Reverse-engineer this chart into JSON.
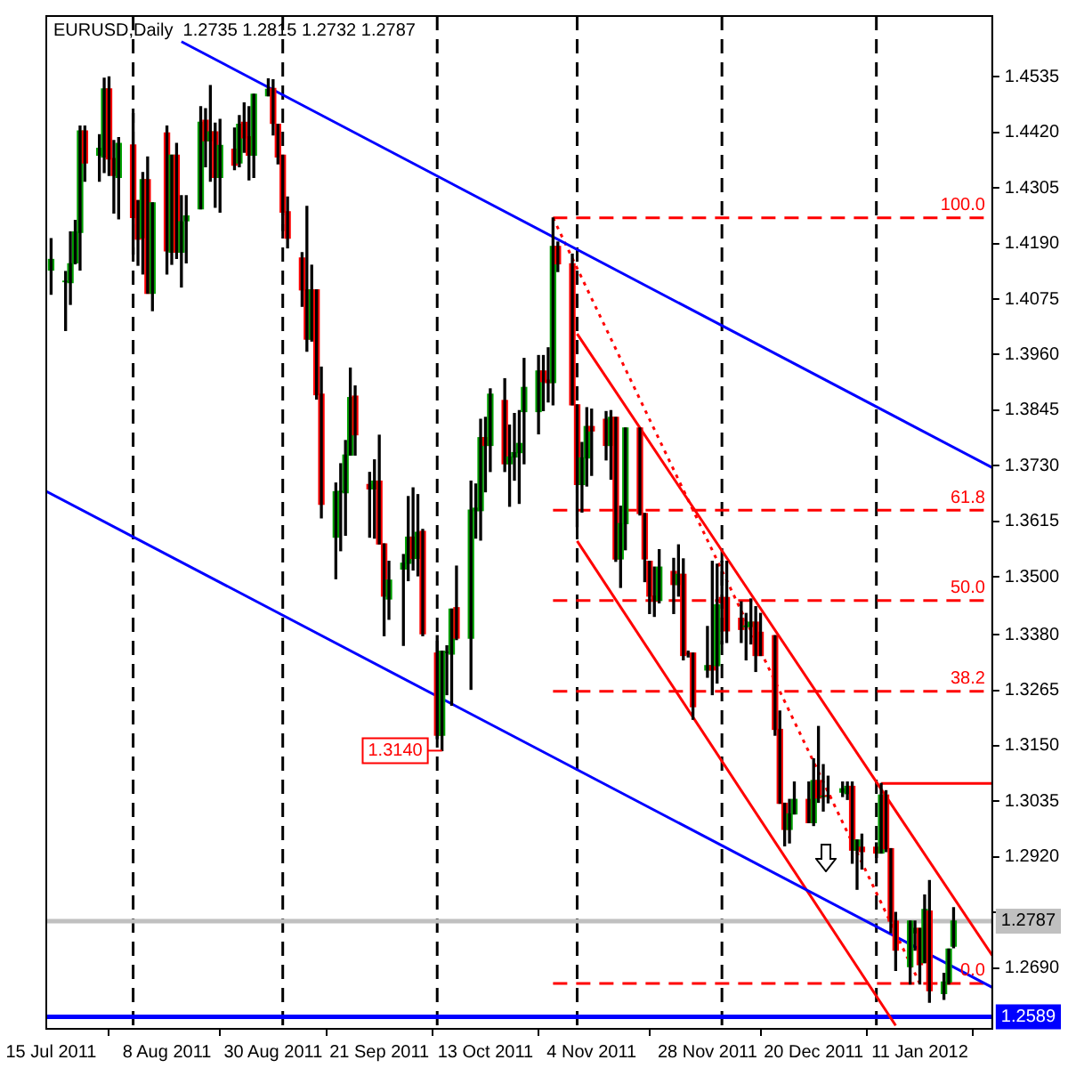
{
  "chart_data": {
    "type": "candlestick",
    "title": "EURUSD,Daily  1.2735 1.2815 1.2732 1.2787",
    "x": [
      "2011-07-15",
      "2011-07-18",
      "2011-07-19",
      "2011-07-20",
      "2011-07-21",
      "2011-07-22",
      "2011-07-25",
      "2011-07-26",
      "2011-07-27",
      "2011-07-28",
      "2011-07-29",
      "2011-08-01",
      "2011-08-02",
      "2011-08-03",
      "2011-08-04",
      "2011-08-05",
      "2011-08-08",
      "2011-08-09",
      "2011-08-10",
      "2011-08-11",
      "2011-08-12",
      "2011-08-15",
      "2011-08-16",
      "2011-08-17",
      "2011-08-18",
      "2011-08-19",
      "2011-08-22",
      "2011-08-23",
      "2011-08-24",
      "2011-08-25",
      "2011-08-26",
      "2011-08-29",
      "2011-08-30",
      "2011-08-31",
      "2011-09-01",
      "2011-09-02",
      "2011-09-05",
      "2011-09-06",
      "2011-09-07",
      "2011-09-08",
      "2011-09-09",
      "2011-09-12",
      "2011-09-13",
      "2011-09-14",
      "2011-09-15",
      "2011-09-16",
      "2011-09-19",
      "2011-09-20",
      "2011-09-21",
      "2011-09-22",
      "2011-09-23",
      "2011-09-26",
      "2011-09-27",
      "2011-09-28",
      "2011-09-29",
      "2011-09-30",
      "2011-10-03",
      "2011-10-04",
      "2011-10-05",
      "2011-10-06",
      "2011-10-07",
      "2011-10-10",
      "2011-10-11",
      "2011-10-12",
      "2011-10-13",
      "2011-10-14",
      "2011-10-17",
      "2011-10-18",
      "2011-10-19",
      "2011-10-20",
      "2011-10-21",
      "2011-10-24",
      "2011-10-25",
      "2011-10-26",
      "2011-10-27",
      "2011-10-28",
      "2011-10-31",
      "2011-11-01",
      "2011-11-02",
      "2011-11-03",
      "2011-11-04",
      "2011-11-07",
      "2011-11-08",
      "2011-11-09",
      "2011-11-10",
      "2011-11-11",
      "2011-11-14",
      "2011-11-15",
      "2011-11-16",
      "2011-11-17",
      "2011-11-18",
      "2011-11-21",
      "2011-11-22",
      "2011-11-23",
      "2011-11-24",
      "2011-11-25",
      "2011-11-28",
      "2011-11-29",
      "2011-11-30",
      "2011-12-01",
      "2011-12-02",
      "2011-12-05",
      "2011-12-06",
      "2011-12-07",
      "2011-12-08",
      "2011-12-09",
      "2011-12-12",
      "2011-12-13",
      "2011-12-14",
      "2011-12-15",
      "2011-12-16",
      "2011-12-19",
      "2011-12-20",
      "2011-12-21",
      "2011-12-22",
      "2011-12-23",
      "2011-12-26",
      "2011-12-27",
      "2011-12-28",
      "2011-12-29",
      "2011-12-30",
      "2012-01-02",
      "2012-01-03",
      "2012-01-04",
      "2012-01-05",
      "2012-01-06",
      "2012-01-09",
      "2012-01-10",
      "2012-01-11",
      "2012-01-12",
      "2012-01-13",
      "2012-01-16",
      "2012-01-17",
      "2012-01-18"
    ],
    "ohlc": [
      [
        1.4135,
        1.42,
        1.4085,
        1.4157
      ],
      [
        1.4111,
        1.4132,
        1.401,
        1.4112
      ],
      [
        1.4109,
        1.4214,
        1.4064,
        1.4148
      ],
      [
        1.415,
        1.4238,
        1.4148,
        1.4214
      ],
      [
        1.4213,
        1.4433,
        1.4135,
        1.4423
      ],
      [
        1.4423,
        1.4433,
        1.4319,
        1.4357
      ],
      [
        1.4373,
        1.4415,
        1.4319,
        1.4387
      ],
      [
        1.4369,
        1.4532,
        1.4337,
        1.451
      ],
      [
        1.451,
        1.4535,
        1.4331,
        1.4365
      ],
      [
        1.4366,
        1.4403,
        1.4253,
        1.4331
      ],
      [
        1.4327,
        1.4409,
        1.4241,
        1.4397
      ],
      [
        1.4394,
        1.4459,
        1.4168,
        1.4244
      ],
      [
        1.4279,
        1.4279,
        1.4145,
        1.4199
      ],
      [
        1.4202,
        1.4337,
        1.4127,
        1.4322
      ],
      [
        1.4322,
        1.4369,
        1.4087,
        1.4087
      ],
      [
        1.4087,
        1.4274,
        1.4051,
        1.4274
      ],
      [
        1.4419,
        1.4433,
        1.4127,
        1.4175
      ],
      [
        1.4172,
        1.4373,
        1.4147,
        1.4373
      ],
      [
        1.4373,
        1.4397,
        1.4159,
        1.4172
      ],
      [
        1.4172,
        1.4289,
        1.41,
        1.4235
      ],
      [
        1.4237,
        1.4289,
        1.415,
        1.4247
      ],
      [
        1.4262,
        1.4473,
        1.4262,
        1.4441
      ],
      [
        1.4445,
        1.4469,
        1.4349,
        1.4403
      ],
      [
        1.4403,
        1.4517,
        1.4319,
        1.4421
      ],
      [
        1.4421,
        1.4439,
        1.4265,
        1.4327
      ],
      [
        1.4327,
        1.4447,
        1.4255,
        1.4393
      ],
      [
        1.4385,
        1.4429,
        1.4343,
        1.4352
      ],
      [
        1.4357,
        1.4455,
        1.4349,
        1.4437
      ],
      [
        1.4441,
        1.4481,
        1.4379,
        1.4409
      ],
      [
        1.4411,
        1.4473,
        1.4322,
        1.4373
      ],
      [
        1.4373,
        1.4499,
        1.4327,
        1.4499
      ],
      [
        1.4496,
        1.4531,
        1.4496,
        1.4509
      ],
      [
        1.4511,
        1.4529,
        1.4415,
        1.4439
      ],
      [
        1.4437,
        1.4437,
        1.4355,
        1.4369
      ],
      [
        1.4373,
        1.4373,
        1.4217,
        1.4255
      ],
      [
        1.4256,
        1.4286,
        1.4181,
        1.4201
      ],
      [
        1.416,
        1.4171,
        1.406,
        1.4094
      ],
      [
        1.4094,
        1.4267,
        1.3967,
        1.3992
      ],
      [
        1.3992,
        1.4145,
        1.3988,
        1.4094
      ],
      [
        1.4094,
        1.4094,
        1.3868,
        1.3877
      ],
      [
        1.3878,
        1.3934,
        1.3622,
        1.365
      ],
      [
        1.3582,
        1.3694,
        1.3496,
        1.3676
      ],
      [
        1.3676,
        1.3734,
        1.3554,
        1.3677
      ],
      [
        1.3674,
        1.3782,
        1.3586,
        1.3752
      ],
      [
        1.3752,
        1.3932,
        1.3752,
        1.3871
      ],
      [
        1.3874,
        1.3895,
        1.3752,
        1.3794
      ],
      [
        1.3691,
        1.3716,
        1.3582,
        1.3682
      ],
      [
        1.3682,
        1.3742,
        1.358,
        1.3698
      ],
      [
        1.3698,
        1.3793,
        1.3568,
        1.3568
      ],
      [
        1.3568,
        1.3568,
        1.3378,
        1.346
      ],
      [
        1.3454,
        1.3532,
        1.3412,
        1.3493
      ],
      [
        1.3516,
        1.3546,
        1.3358,
        1.3528
      ],
      [
        1.3528,
        1.3666,
        1.3492,
        1.3582
      ],
      [
        1.3582,
        1.3684,
        1.3514,
        1.3538
      ],
      [
        1.3538,
        1.367,
        1.3502,
        1.3592
      ],
      [
        1.3594,
        1.3598,
        1.3378,
        1.3382
      ],
      [
        1.3342,
        1.3378,
        1.3165,
        1.3172
      ],
      [
        1.3172,
        1.3346,
        1.314,
        1.3346
      ],
      [
        1.3343,
        1.3357,
        1.3256,
        1.3344
      ],
      [
        1.334,
        1.3433,
        1.3234,
        1.3433
      ],
      [
        1.3436,
        1.3522,
        1.337,
        1.3373
      ],
      [
        1.3373,
        1.3698,
        1.3267,
        1.3638
      ],
      [
        1.3637,
        1.3692,
        1.358,
        1.3642
      ],
      [
        1.3637,
        1.3826,
        1.3576,
        1.3788
      ],
      [
        1.3788,
        1.383,
        1.3676,
        1.3772
      ],
      [
        1.3772,
        1.3889,
        1.3718,
        1.3878
      ],
      [
        1.3865,
        1.391,
        1.3718,
        1.3734
      ],
      [
        1.3734,
        1.3814,
        1.3646,
        1.3748
      ],
      [
        1.3748,
        1.3838,
        1.37,
        1.3757
      ],
      [
        1.3757,
        1.3844,
        1.3652,
        1.3776
      ],
      [
        1.3842,
        1.3952,
        1.3734,
        1.3892
      ],
      [
        1.3842,
        1.3958,
        1.3796,
        1.3926
      ],
      [
        1.3926,
        1.3958,
        1.3844,
        1.3904
      ],
      [
        1.3907,
        1.3974,
        1.3862,
        1.3902
      ],
      [
        1.3902,
        1.4243,
        1.3856,
        1.4184
      ],
      [
        1.4184,
        1.4193,
        1.4132,
        1.4148
      ],
      [
        1.4148,
        1.4168,
        1.3856,
        1.3856
      ],
      [
        1.3856,
        1.3856,
        1.3604,
        1.3691
      ],
      [
        1.3691,
        1.3778,
        1.3634,
        1.3746
      ],
      [
        1.3746,
        1.385,
        1.3688,
        1.3811
      ],
      [
        1.3811,
        1.3847,
        1.371,
        1.3802
      ],
      [
        1.3826,
        1.3842,
        1.3742,
        1.3772
      ],
      [
        1.3772,
        1.3844,
        1.3702,
        1.383
      ],
      [
        1.383,
        1.383,
        1.3532,
        1.3537
      ],
      [
        1.3537,
        1.3646,
        1.3478,
        1.361
      ],
      [
        1.361,
        1.3808,
        1.3556,
        1.3808
      ],
      [
        1.3808,
        1.3808,
        1.3628,
        1.3631
      ],
      [
        1.3631,
        1.3631,
        1.349,
        1.3537
      ],
      [
        1.3532,
        1.3532,
        1.3424,
        1.346
      ],
      [
        1.346,
        1.352,
        1.3418,
        1.3451
      ],
      [
        1.3451,
        1.3556,
        1.3446,
        1.352
      ],
      [
        1.3511,
        1.3538,
        1.3424,
        1.3484
      ],
      [
        1.3484,
        1.3566,
        1.346,
        1.3505
      ],
      [
        1.3505,
        1.3537,
        1.3328,
        1.3337
      ],
      [
        1.3342,
        1.3346,
        1.3334,
        1.334
      ],
      [
        1.3342,
        1.3342,
        1.3205,
        1.3231
      ],
      [
        1.3307,
        1.3397,
        1.3292,
        1.3316
      ],
      [
        1.3316,
        1.3532,
        1.3256,
        1.3307
      ],
      [
        1.3316,
        1.3526,
        1.328,
        1.3442
      ],
      [
        1.3457,
        1.3532,
        1.3361,
        1.3446
      ],
      [
        1.3457,
        1.3532,
        1.3364,
        1.3388
      ],
      [
        1.3414,
        1.3448,
        1.3364,
        1.3391
      ],
      [
        1.3397,
        1.3424,
        1.3328,
        1.3398
      ],
      [
        1.3397,
        1.3454,
        1.3361,
        1.3406
      ],
      [
        1.3406,
        1.3438,
        1.3304,
        1.3337
      ],
      [
        1.3385,
        1.3424,
        1.3337,
        1.3337
      ],
      [
        1.3378,
        1.3378,
        1.3172,
        1.3184
      ],
      [
        1.3184,
        1.3222,
        1.3031,
        1.3031
      ],
      [
        1.3031,
        1.3031,
        1.2943,
        1.2977
      ],
      [
        1.2977,
        1.3039,
        1.2949,
        1.3009
      ],
      [
        1.3009,
        1.3075,
        1.3009,
        1.3039
      ],
      [
        1.3039,
        1.3075,
        1.2991,
        1.2991
      ],
      [
        1.2991,
        1.3123,
        1.2985,
        1.3078
      ],
      [
        1.3078,
        1.319,
        1.3033,
        1.3042
      ],
      [
        1.3045,
        1.3111,
        1.3015,
        1.3046
      ],
      [
        1.3047,
        1.3087,
        1.3032,
        1.3046
      ],
      [
        1.3054,
        1.3075,
        1.3045,
        1.3061
      ],
      [
        1.3051,
        1.3075,
        1.3039,
        1.3066
      ],
      [
        1.3066,
        1.3075,
        1.2907,
        1.2934
      ],
      [
        1.2934,
        1.2955,
        1.2853,
        1.2955
      ],
      [
        1.294,
        1.2967,
        1.2895,
        1.2931
      ],
      [
        1.294,
        1.2949,
        1.2919,
        1.2928
      ],
      [
        1.2928,
        1.3072,
        1.2928,
        1.3048
      ],
      [
        1.3048,
        1.3057,
        1.2931,
        1.2937
      ],
      [
        1.2937,
        1.2937,
        1.2763,
        1.2787
      ],
      [
        1.2787,
        1.2805,
        1.2685,
        1.2727
      ],
      [
        1.2693,
        1.2787,
        1.2657,
        1.2787
      ],
      [
        1.2763,
        1.2787,
        1.2727,
        1.2772
      ],
      [
        1.2772,
        1.2772,
        1.2657,
        1.2697
      ],
      [
        1.2701,
        1.2841,
        1.2701,
        1.2811
      ],
      [
        1.2808,
        1.2871,
        1.2619,
        1.2643
      ],
      [
        1.2637,
        1.2679,
        1.2625,
        1.2661
      ],
      [
        1.2661,
        1.2729,
        1.2657,
        1.2729
      ],
      [
        1.2735,
        1.2815,
        1.2732,
        1.2787
      ]
    ],
    "xlim": [
      "2011-07-14",
      "2012-01-26"
    ],
    "xticks": [
      {
        "value": "2011-07-15",
        "label": "15 Jul 2011"
      },
      {
        "value": "2011-08-08",
        "label": "8 Aug 2011"
      },
      {
        "value": "2011-08-30",
        "label": "30 Aug 2011"
      },
      {
        "value": "2011-09-21",
        "label": "21 Sep 2011"
      },
      {
        "value": "2011-10-13",
        "label": "13 Oct 2011"
      },
      {
        "value": "2011-11-04",
        "label": "4 Nov 2011"
      },
      {
        "value": "2011-11-28",
        "label": "28 Nov 2011"
      },
      {
        "value": "2011-12-20",
        "label": "20 Dec 2011"
      },
      {
        "value": "2012-01-11",
        "label": "11 Jan 2012"
      }
    ],
    "ylim": [
      1.2564,
      1.4661
    ],
    "yticks": [
      1.4535,
      {
        "value": 1.442,
        "label": "1.4420"
      },
      1.4305,
      {
        "value": 1.419,
        "label": "1.4190"
      },
      1.4075,
      {
        "value": 1.396,
        "label": "1.3960"
      },
      1.3845,
      {
        "value": 1.373,
        "label": "1.3730"
      },
      1.3615,
      {
        "value": 1.35,
        "label": "1.3500"
      },
      {
        "value": 1.338,
        "label": "1.3380"
      },
      1.3265,
      {
        "value": 1.315,
        "label": "1.3150"
      },
      1.3035,
      {
        "value": 1.292,
        "label": "1.2920"
      },
      {
        "value": 1.2805,
        "label": null
      },
      {
        "value": 1.269,
        "label": "1.2690"
      }
    ],
    "grid": false,
    "legend": false,
    "series": [
      {
        "type": "line",
        "color": "#0000ff",
        "x": [
          "2011-08-11",
          "2012-01-26"
        ],
        "values": [
          1.4608,
          1.3726
        ]
      },
      {
        "type": "line",
        "color": "#0000ff",
        "x": [
          "2011-07-14",
          "2012-01-26"
        ],
        "values": [
          1.3677,
          1.265
        ]
      },
      {
        "type": "line",
        "color": "#ff0000",
        "x": [
          "2011-11-01",
          "2012-01-26"
        ],
        "values": [
          1.4003,
          1.2716
        ]
      },
      {
        "type": "line",
        "color": "#ff0000",
        "x": [
          "2011-11-01",
          "2012-01-06"
        ],
        "values": [
          1.3574,
          1.2571
        ]
      },
      {
        "type": "line",
        "color": "#ff0000",
        "line_style": "dotted",
        "x": [
          "2011-10-27",
          "2012-01-11"
        ],
        "values": [
          1.4243,
          1.2658
        ]
      },
      {
        "type": "line",
        "color": "#ff0000",
        "x": [
          "2012-01-03",
          "2012-01-26"
        ],
        "values": [
          1.3072,
          1.3072
        ]
      },
      {
        "type": "line",
        "name": "100.0",
        "color": "#ff0000",
        "line_style": "dashed",
        "x": [
          "2011-10-27",
          "2012-01-26"
        ],
        "values": [
          1.4243,
          1.4243
        ]
      },
      {
        "type": "line",
        "name": "61.8",
        "color": "#ff0000",
        "line_style": "dashed",
        "x": [
          "2011-10-27",
          "2012-01-26"
        ],
        "values": [
          1.3638,
          1.3638
        ]
      },
      {
        "type": "line",
        "name": "50.0",
        "color": "#ff0000",
        "line_style": "dashed",
        "x": [
          "2011-10-27",
          "2012-01-26"
        ],
        "values": [
          1.3451,
          1.3451
        ]
      },
      {
        "type": "line",
        "name": "38.2",
        "color": "#ff0000",
        "line_style": "dashed",
        "x": [
          "2011-10-27",
          "2012-01-26"
        ],
        "values": [
          1.3263,
          1.3263
        ]
      },
      {
        "type": "line",
        "name": "0.0",
        "color": "#ff0000",
        "line_style": "dashed",
        "x": [
          "2011-10-27",
          "2012-01-26"
        ],
        "values": [
          1.2658,
          1.2658
        ]
      }
    ],
    "ref_lines": [
      {
        "axis": "x",
        "value": "2011-08-01",
        "color": "#000000",
        "line_style": "dashed"
      },
      {
        "axis": "x",
        "value": "2011-09-01",
        "color": "#000000",
        "line_style": "dashed"
      },
      {
        "axis": "x",
        "value": "2011-10-03",
        "color": "#000000",
        "line_style": "dashed"
      },
      {
        "axis": "x",
        "value": "2011-11-01",
        "color": "#000000",
        "line_style": "dashed"
      },
      {
        "axis": "x",
        "value": "2011-12-01",
        "color": "#000000",
        "line_style": "dashed"
      },
      {
        "axis": "x",
        "value": "2012-01-02",
        "color": "#000000",
        "line_style": "dashed"
      },
      {
        "axis": "y",
        "value": 1.2787,
        "label": "1.2787",
        "color": "#c0c0c0"
      },
      {
        "axis": "y",
        "value": 1.2589,
        "label": "1.2589",
        "color": "#0000ff"
      }
    ],
    "annotations": [
      {
        "text": "1.3140",
        "x": "2011-10-04",
        "y": 1.314
      }
    ]
  }
}
